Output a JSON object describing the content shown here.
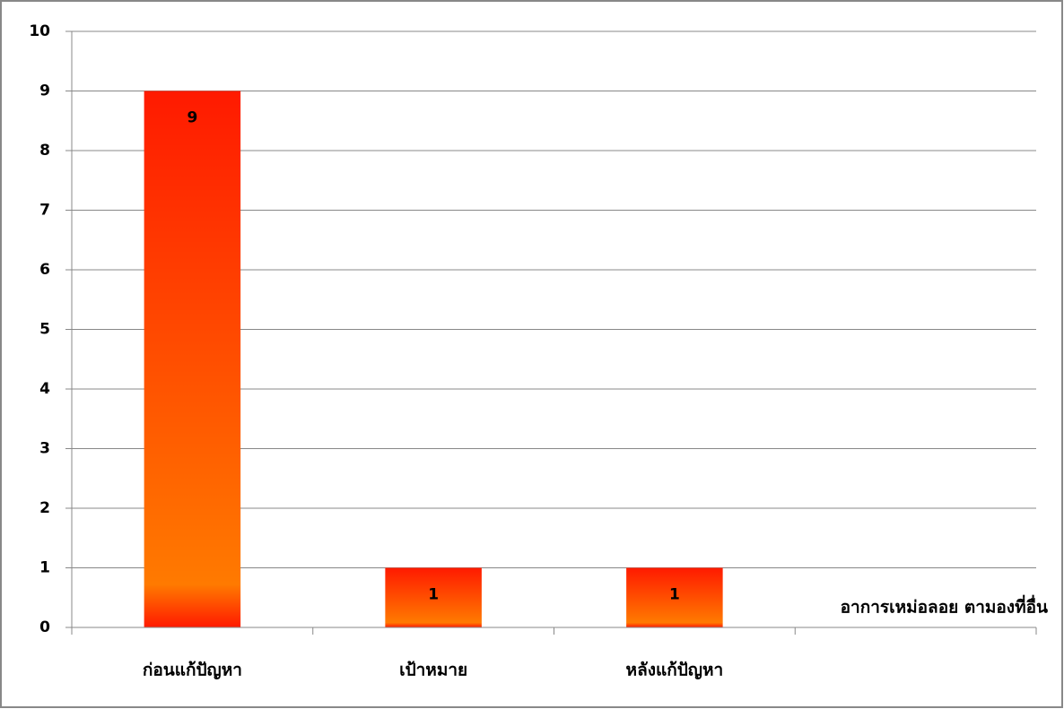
{
  "chart_data": {
    "type": "bar",
    "categories": [
      "ก่อนแก้ปัญหา",
      "เป้าหมาย",
      "หลังแก้ปัญหา",
      null
    ],
    "series": [
      {
        "name": "อาการเหม่อลอย ตามองที่อื่น",
        "color": "#ff1a00",
        "gradient_end": "#ff7a00",
        "values": [
          9,
          1,
          1,
          null
        ]
      }
    ],
    "ylim": [
      0,
      10
    ],
    "yticks": [
      0,
      1,
      2,
      3,
      4,
      5,
      6,
      7,
      8,
      9,
      10
    ],
    "grid": true,
    "legend": "bottom-right",
    "data_labels": true
  }
}
